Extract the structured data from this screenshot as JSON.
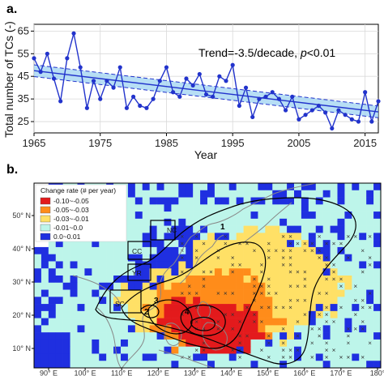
{
  "panels": {
    "a_label": "a.",
    "b_label": "b."
  },
  "chart_data": [
    {
      "type": "line",
      "panel": "a",
      "title": "",
      "xlabel": "Year",
      "ylabel": "Total number of TCs (-)",
      "xlim": [
        1965,
        2017
      ],
      "ylim": [
        20,
        68
      ],
      "x_ticks": [
        1965,
        1975,
        1985,
        1995,
        2005,
        2015
      ],
      "y_ticks": [
        25,
        35,
        45,
        55,
        65
      ],
      "annotation": {
        "text_prefix": "Trend=-3.5/decade, ",
        "p_symbol": "p",
        "text_suffix": "<0.01"
      },
      "grid": true,
      "series": [
        {
          "color": "#2233cc",
          "x": [
            1965,
            1966,
            1967,
            1968,
            1969,
            1970,
            1971,
            1972,
            1973,
            1974,
            1975,
            1976,
            1977,
            1978,
            1979,
            1980,
            1981,
            1982,
            1983,
            1984,
            1985,
            1986,
            1987,
            1988,
            1989,
            1990,
            1991,
            1992,
            1993,
            1994,
            1995,
            1996,
            1997,
            1998,
            1999,
            2000,
            2001,
            2002,
            2003,
            2004,
            2005,
            2006,
            2007,
            2008,
            2009,
            2010,
            2011,
            2012,
            2013,
            2014,
            2015,
            2016,
            2017
          ],
          "values": [
            53,
            47,
            55,
            44,
            34,
            53,
            64,
            49,
            31,
            43,
            35,
            43,
            40,
            49,
            31,
            36,
            32,
            31,
            35,
            43,
            49,
            38,
            36,
            44,
            41,
            46,
            37,
            36,
            45,
            43,
            50,
            32,
            40,
            27,
            35,
            36,
            38,
            35,
            30,
            36,
            26,
            28,
            30,
            32,
            29,
            22,
            30,
            28,
            26,
            25,
            38,
            25,
            34
          ]
        }
      ],
      "trend_line": {
        "x": [
          1965,
          2017
        ],
        "values": [
          47.5,
          29.3
        ],
        "band_halfwidth": 2.6
      }
    },
    {
      "type": "heatmap",
      "panel": "b",
      "x_ticks": [
        "90° E",
        "100° E",
        "110° E",
        "120° E",
        "130° E",
        "140° E",
        "150° E",
        "160° E",
        "170° E",
        "180°"
      ],
      "y_ticks": [
        "10° N",
        "20° N",
        "30° N",
        "40° N",
        "50° N"
      ],
      "legend": {
        "title": "Change rate (# per year)",
        "entries": [
          {
            "label": "-0.10~-0.05",
            "color": "#e31a1c"
          },
          {
            "label": "-0.05~-0.03",
            "color": "#ff8c1a"
          },
          {
            "label": "-0.03~-0.01",
            "color": "#ffe066"
          },
          {
            "label": "-0.01~0.0",
            "color": "#bdf5ea"
          },
          {
            "label": "0.0~0.01",
            "color": "#1f2fe0"
          }
        ]
      },
      "regions": [
        {
          "label": "NC"
        },
        {
          "label": "CC"
        },
        {
          "label": "YR"
        },
        {
          "label": "SC"
        }
      ],
      "contour_labels": [
        "1",
        "2",
        "3",
        "4"
      ]
    }
  ]
}
